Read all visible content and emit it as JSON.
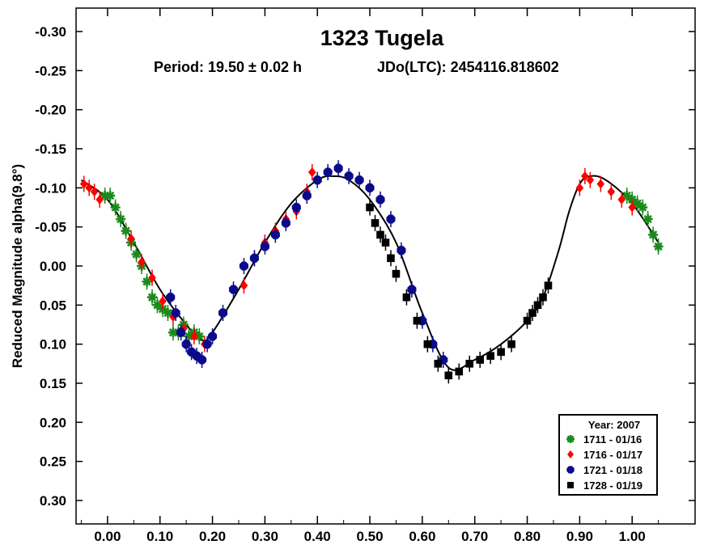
{
  "chart_data": {
    "type": "scatter",
    "title": "1323 Tugela",
    "subtitle_period": "Period: 19.50 ± 0.02 h",
    "subtitle_epoch": "JDo(LTC): 2454116.818602",
    "xlabel": "",
    "ylabel": "Reduced Magnitude alpha(9.8°)",
    "xlim": [
      -0.06,
      1.12
    ],
    "ylim": [
      0.33,
      -0.33
    ],
    "x_ticks": [
      0.0,
      0.1,
      0.2,
      0.3,
      0.4,
      0.5,
      0.6,
      0.7,
      0.8,
      0.9,
      1.0
    ],
    "x_tick_labels": [
      "0.00",
      "0.10",
      "0.20",
      "0.30",
      "0.40",
      "0.50",
      "0.60",
      "0.70",
      "0.80",
      "0.90",
      "1.00"
    ],
    "y_ticks": [
      -0.3,
      -0.25,
      -0.2,
      -0.15,
      -0.1,
      -0.05,
      0.0,
      0.05,
      0.1,
      0.15,
      0.2,
      0.25,
      0.3
    ],
    "y_tick_labels": [
      "-0.30",
      "-0.25",
      "-0.20",
      "-0.15",
      "-0.10",
      "-0.05",
      "0.00",
      "0.05",
      "0.10",
      "0.15",
      "0.20",
      "0.25",
      "0.30"
    ],
    "grid": false,
    "legend": {
      "placement": "bottom-right",
      "title": "Year: 2007",
      "entries": [
        {
          "label": "1711 - 01/16",
          "color": "#1a8a1a",
          "marker": "asterisk"
        },
        {
          "label": "1716 - 01/17",
          "color": "#ff0000",
          "marker": "diamond"
        },
        {
          "label": "1721 - 01/18",
          "color": "#0a0a8a",
          "marker": "hexagon"
        },
        {
          "label": "1728 - 01/19",
          "color": "#000000",
          "marker": "square"
        }
      ]
    },
    "fit_curve": {
      "color": "#000000",
      "x": [
        -0.05,
        0.0,
        0.05,
        0.1,
        0.15,
        0.18,
        0.2,
        0.25,
        0.3,
        0.35,
        0.4,
        0.43,
        0.46,
        0.5,
        0.55,
        0.6,
        0.65,
        0.7,
        0.75,
        0.8,
        0.83,
        0.86,
        0.88,
        0.9,
        0.92,
        0.95,
        1.0,
        1.05
      ],
      "y": [
        -0.11,
        -0.085,
        -0.03,
        0.03,
        0.075,
        0.095,
        0.085,
        0.03,
        -0.03,
        -0.08,
        -0.11,
        -0.115,
        -0.11,
        -0.085,
        -0.03,
        0.06,
        0.13,
        0.12,
        0.1,
        0.07,
        0.04,
        -0.02,
        -0.07,
        -0.105,
        -0.115,
        -0.11,
        -0.08,
        -0.03
      ]
    },
    "series": [
      {
        "name": "1711 - 01/16",
        "color": "#1a8a1a",
        "marker": "asterisk",
        "x": [
          -0.005,
          0.005,
          0.015,
          0.025,
          0.035,
          0.045,
          0.055,
          0.065,
          0.075,
          0.085,
          0.095,
          0.105,
          0.115,
          0.125,
          0.135,
          0.145,
          0.155,
          0.165,
          0.175,
          0.99,
          1.0,
          1.01,
          1.02,
          1.03,
          1.04,
          1.05
        ],
        "y": [
          -0.09,
          -0.09,
          -0.075,
          -0.06,
          -0.045,
          -0.03,
          -0.015,
          0.0,
          0.02,
          0.04,
          0.05,
          0.055,
          0.06,
          0.085,
          0.085,
          0.075,
          0.09,
          0.085,
          0.09,
          -0.09,
          -0.085,
          -0.08,
          -0.075,
          -0.06,
          -0.04,
          -0.025
        ]
      },
      {
        "name": "1716 - 01/17",
        "color": "#ff0000",
        "marker": "diamond",
        "x": [
          -0.045,
          -0.035,
          -0.025,
          -0.015,
          0.045,
          0.065,
          0.085,
          0.105,
          0.125,
          0.145,
          0.165,
          0.185,
          0.26,
          0.28,
          0.3,
          0.32,
          0.34,
          0.36,
          0.38,
          0.39,
          0.9,
          0.91,
          0.92,
          0.94,
          0.96,
          0.98,
          1.0
        ],
        "y": [
          -0.105,
          -0.1,
          -0.095,
          -0.085,
          -0.035,
          -0.005,
          0.015,
          0.045,
          0.065,
          0.08,
          0.09,
          0.1,
          0.025,
          -0.01,
          -0.03,
          -0.045,
          -0.06,
          -0.07,
          -0.095,
          -0.12,
          -0.1,
          -0.115,
          -0.11,
          -0.105,
          -0.095,
          -0.085,
          -0.075
        ]
      },
      {
        "name": "1721 - 01/18",
        "color": "#0a0a8a",
        "marker": "hexagon",
        "x": [
          0.12,
          0.13,
          0.14,
          0.15,
          0.16,
          0.17,
          0.18,
          0.19,
          0.2,
          0.22,
          0.24,
          0.26,
          0.28,
          0.3,
          0.32,
          0.34,
          0.36,
          0.38,
          0.4,
          0.42,
          0.44,
          0.46,
          0.48,
          0.5,
          0.52,
          0.54,
          0.56,
          0.58,
          0.6,
          0.62,
          0.64
        ],
        "y": [
          0.04,
          0.06,
          0.085,
          0.1,
          0.11,
          0.115,
          0.12,
          0.1,
          0.09,
          0.06,
          0.03,
          0.0,
          -0.01,
          -0.025,
          -0.04,
          -0.055,
          -0.075,
          -0.09,
          -0.11,
          -0.12,
          -0.125,
          -0.115,
          -0.11,
          -0.1,
          -0.085,
          -0.06,
          -0.02,
          0.03,
          0.07,
          0.1,
          0.12
        ]
      },
      {
        "name": "1728 - 01/19",
        "color": "#000000",
        "marker": "square",
        "x": [
          0.5,
          0.51,
          0.52,
          0.53,
          0.54,
          0.55,
          0.57,
          0.59,
          0.61,
          0.63,
          0.65,
          0.67,
          0.69,
          0.71,
          0.73,
          0.75,
          0.77,
          0.8,
          0.81,
          0.82,
          0.83,
          0.84
        ],
        "y": [
          -0.075,
          -0.055,
          -0.04,
          -0.03,
          -0.01,
          0.01,
          0.04,
          0.07,
          0.1,
          0.125,
          0.14,
          0.135,
          0.125,
          0.12,
          0.115,
          0.11,
          0.1,
          0.07,
          0.06,
          0.05,
          0.04,
          0.025
        ]
      }
    ]
  }
}
